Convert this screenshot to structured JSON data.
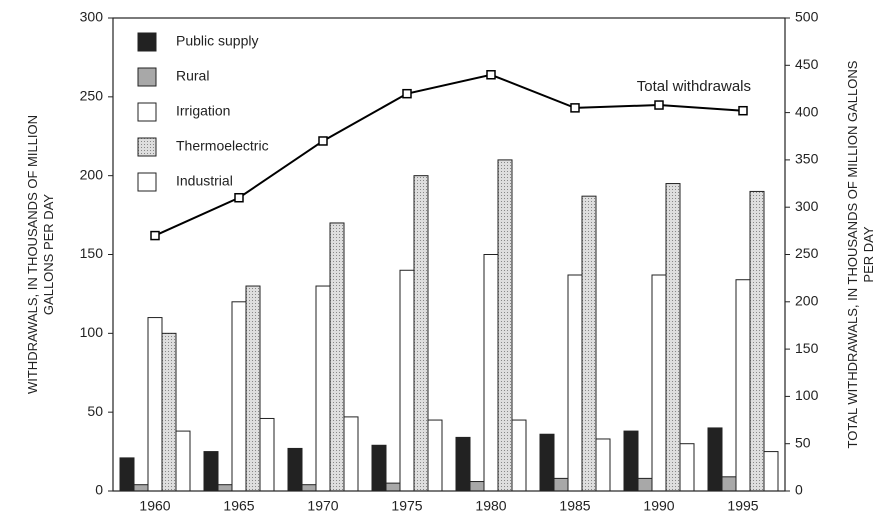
{
  "chart_data": {
    "type": "bar",
    "categories": [
      "1960",
      "1965",
      "1970",
      "1975",
      "1980",
      "1985",
      "1990",
      "1995"
    ],
    "series": [
      {
        "name": "Public supply",
        "color": "#222222",
        "values": [
          21,
          25,
          27,
          29,
          34,
          36,
          38,
          40
        ]
      },
      {
        "name": "Rural",
        "color": "#a8a8a8",
        "values": [
          4,
          4,
          4,
          5,
          6,
          8,
          8,
          9
        ]
      },
      {
        "name": "Irrigation",
        "color": "#ffffff",
        "values": [
          110,
          120,
          130,
          140,
          150,
          137,
          137,
          134
        ]
      },
      {
        "name": "Thermoelectric",
        "color": "#dedede",
        "values": [
          100,
          130,
          170,
          200,
          210,
          187,
          195,
          190
        ]
      },
      {
        "name": "Industrial",
        "color": "#ffffff",
        "values": [
          38,
          46,
          47,
          45,
          45,
          33,
          30,
          25
        ]
      },
      {
        "name": "Total withdrawals",
        "color": "#000000",
        "axis": "y2",
        "type": "line",
        "values": [
          270,
          310,
          370,
          420,
          440,
          405,
          408,
          402
        ]
      }
    ],
    "ylabel": "WITHDRAWALS, IN THOUSANDS OF MILLION GALLONS PER DAY",
    "y2label": "TOTAL WITHDRAWALS, IN THOUSANDS OF MILLION GALLONS PER DAY",
    "ylim": [
      0,
      300
    ],
    "yticks": [
      0,
      50,
      100,
      150,
      200,
      250,
      300
    ],
    "y2lim": [
      0,
      500
    ],
    "y2ticks": [
      0,
      50,
      100,
      150,
      200,
      250,
      300,
      350,
      400,
      450,
      500
    ],
    "legend": "upper left"
  }
}
